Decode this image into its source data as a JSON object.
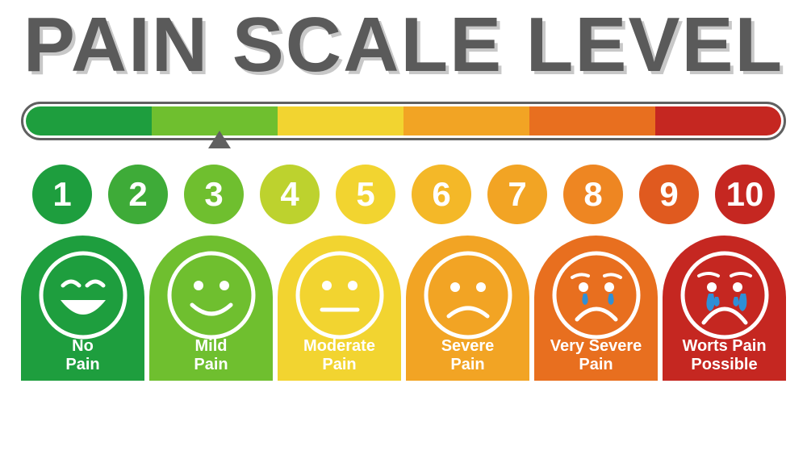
{
  "title": "PAIN SCALE LEVEL",
  "title_color": "#5a5a5a",
  "title_shadow": "#c8c8c8",
  "title_fontsize": 96,
  "background_color": "#ffffff",
  "bar": {
    "border_color": "#606060",
    "height": 48,
    "segments": [
      {
        "color": "#1e9e3e"
      },
      {
        "color": "#6fbf2f"
      },
      {
        "color": "#f2d430"
      },
      {
        "color": "#f2a424"
      },
      {
        "color": "#e86f1f"
      },
      {
        "color": "#c52721"
      }
    ],
    "indicator_color": "#606060",
    "indicator_position_pct": 26
  },
  "numbers": [
    {
      "label": "1",
      "color": "#1e9e3e"
    },
    {
      "label": "2",
      "color": "#3eab38"
    },
    {
      "label": "3",
      "color": "#6fbf2f"
    },
    {
      "label": "4",
      "color": "#bdd22e"
    },
    {
      "label": "5",
      "color": "#f2d430"
    },
    {
      "label": "6",
      "color": "#f4b828"
    },
    {
      "label": "7",
      "color": "#f2a424"
    },
    {
      "label": "8",
      "color": "#ee8622"
    },
    {
      "label": "9",
      "color": "#e05a1f"
    },
    {
      "label": "10",
      "color": "#c52721"
    }
  ],
  "faces": [
    {
      "label": "No\nPain",
      "color": "#1e9e3e",
      "expr": "laugh"
    },
    {
      "label": "Mild\nPain",
      "color": "#6fbf2f",
      "expr": "smile"
    },
    {
      "label": "Moderate\nPain",
      "color": "#f2d430",
      "expr": "neutral"
    },
    {
      "label": "Severe\nPain",
      "color": "#f2a424",
      "expr": "frown"
    },
    {
      "label": "Very Severe\nPain",
      "color": "#e86f1f",
      "expr": "sad"
    },
    {
      "label": "Worts Pain\nPossible",
      "color": "#c52721",
      "expr": "cry"
    }
  ],
  "face_stroke": "#ffffff",
  "tear_color": "#2f8fd6",
  "number_fontsize": 42,
  "label_fontsize": 20
}
